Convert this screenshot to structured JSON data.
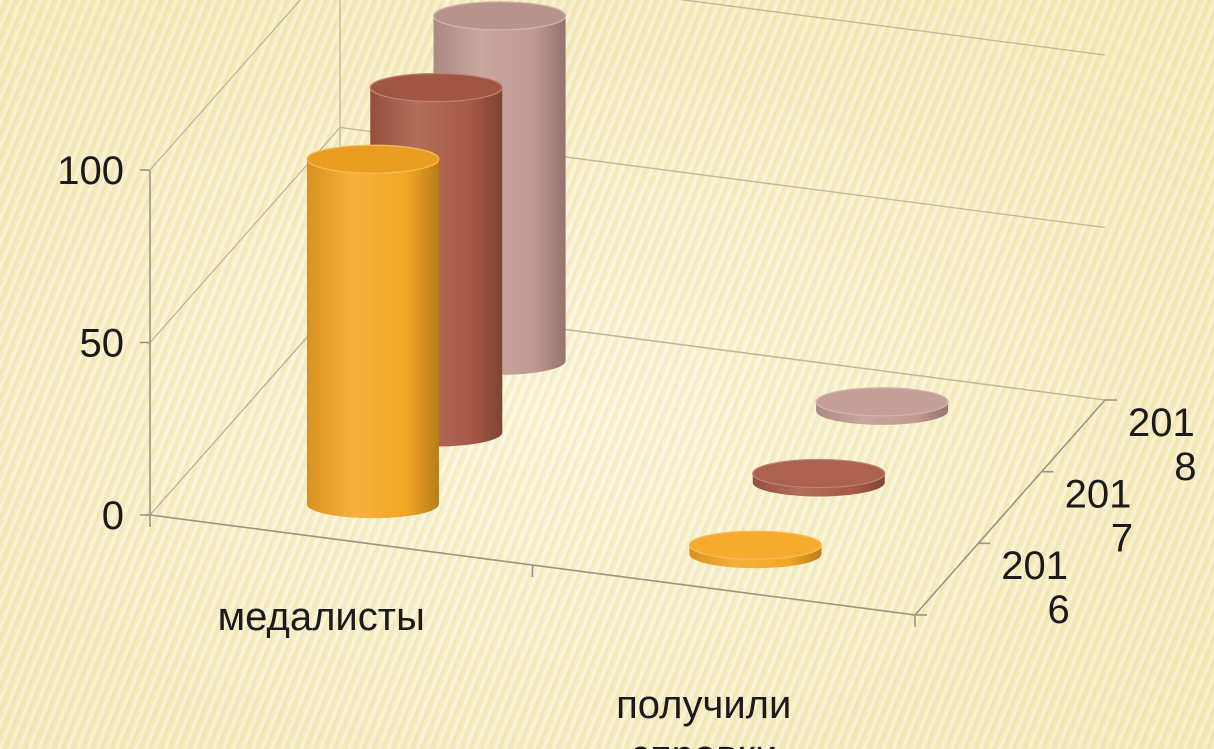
{
  "chart_data": {
    "type": "bar",
    "style": "3d-cylinder",
    "categories": [
      "медалисты",
      "получили справки"
    ],
    "series": [
      {
        "name": "2016",
        "values": [
          100,
          0
        ]
      },
      {
        "name": "2017",
        "values": [
          100,
          0
        ]
      },
      {
        "name": "2018",
        "values": [
          100,
          0
        ]
      }
    ],
    "depth_labels": [
      "201\n6",
      "201\n7",
      "201\n8"
    ],
    "yticks": [
      0,
      50,
      100
    ],
    "ylim": [
      0,
      100
    ],
    "grid": true,
    "colors": {
      "series": [
        "#f5a623",
        "#a85a45",
        "#c29a93"
      ],
      "background": "#f6edbf"
    }
  }
}
